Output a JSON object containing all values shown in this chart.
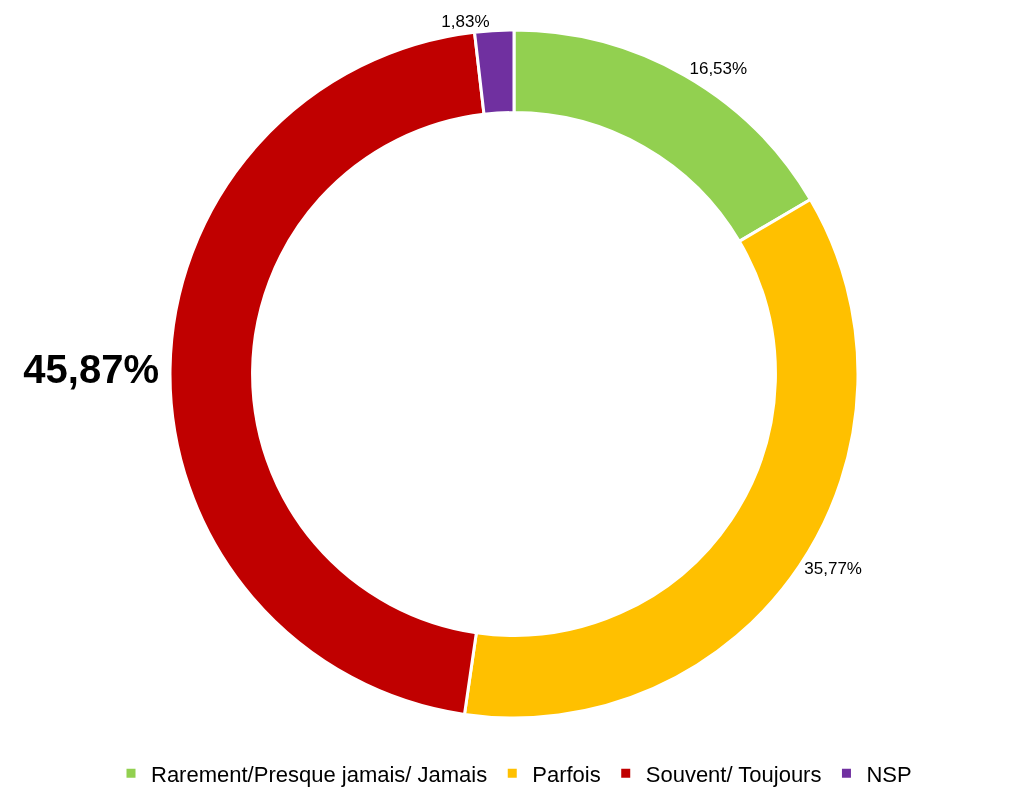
{
  "chart_data": {
    "type": "donut",
    "categories": [
      "Rarement/Presque jamais/ Jamais",
      "Parfois",
      "Souvent/ Toujours",
      "NSP"
    ],
    "values": [
      16.53,
      35.77,
      45.87,
      1.83
    ],
    "colors": [
      "#92d050",
      "#ffc000",
      "#c00000",
      "#7030a0"
    ],
    "value_labels": [
      "16,53%",
      "35,77%",
      "45,87%",
      "1,83%"
    ],
    "legend": "bottom"
  }
}
